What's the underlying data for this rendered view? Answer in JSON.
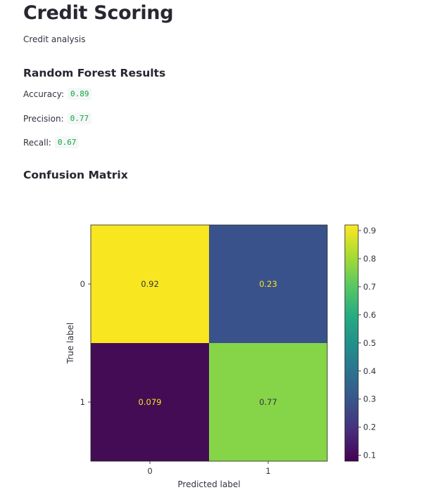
{
  "app": {
    "title": "Credit Scoring",
    "subtitle": "Credit analysis"
  },
  "results": {
    "header": "Random Forest Results",
    "metrics": [
      {
        "label": "Accuracy:",
        "value": "0.89"
      },
      {
        "label": "Precision:",
        "value": "0.77"
      },
      {
        "label": "Recall:",
        "value": "0.67"
      }
    ]
  },
  "confusion": {
    "header": "Confusion Matrix"
  },
  "chart_data": {
    "type": "heatmap",
    "title": "",
    "xlabel": "Predicted label",
    "ylabel": "True label",
    "x_categories": [
      "0",
      "1"
    ],
    "y_categories": [
      "0",
      "1"
    ],
    "values": [
      [
        0.92,
        0.23
      ],
      [
        0.079,
        0.77
      ]
    ],
    "value_labels": [
      [
        "0.92",
        "0.23"
      ],
      [
        "0.079",
        "0.77"
      ]
    ],
    "colormap": "viridis",
    "colorbar": {
      "range": [
        0.079,
        0.92
      ],
      "ticks": [
        "0.1",
        "0.2",
        "0.3",
        "0.4",
        "0.5",
        "0.6",
        "0.7",
        "0.8",
        "0.9"
      ],
      "tick_values": [
        0.1,
        0.2,
        0.3,
        0.4,
        0.5,
        0.6,
        0.7,
        0.8,
        0.9
      ]
    },
    "cell_colors": [
      [
        "#f8e621",
        "#3a528b"
      ],
      [
        "#440c55",
        "#86d549"
      ]
    ],
    "text_colors": [
      [
        "#31333f",
        "#f8e621"
      ],
      [
        "#f8e621",
        "#31333f"
      ]
    ]
  }
}
